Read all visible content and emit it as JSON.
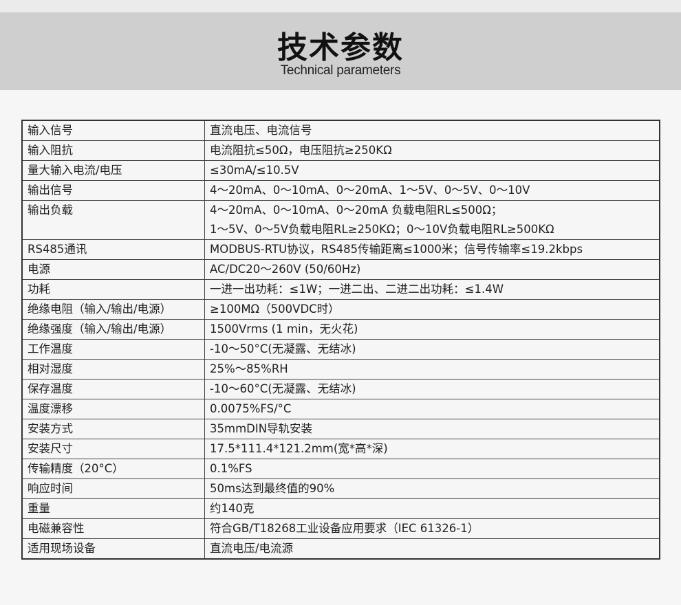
{
  "header": {
    "title": "技术参数",
    "subtitle": "Technical parameters"
  },
  "rows": [
    {
      "label": "输入信号",
      "value": [
        "直流电压、电流信号"
      ]
    },
    {
      "label": "输入阻抗",
      "value": [
        "电流阻抗≤50Ω，电压阻抗≥250KΩ"
      ]
    },
    {
      "label": "量大输入电流/电压",
      "value": [
        "≤30mA/≤10.5V"
      ]
    },
    {
      "label": "输出信号",
      "value": [
        "4～20mA、0～10mA、0～20mA、1～5V、0～5V、0～10V"
      ]
    },
    {
      "label": "输出负载",
      "value": [
        "4～20mA、0～10mA、0～20mA 负载电阻RL≤500Ω；",
        "1～5V、0～5V负载电阻RL≥250KΩ；0～10V负载电阻RL≥500KΩ"
      ]
    },
    {
      "label": "RS485通讯",
      "value": [
        "MODBUS-RTU协议，RS485传输距离≤1000米；信号传输率≤19.2kbps"
      ]
    },
    {
      "label": "电源",
      "value": [
        "AC/DC20～260V (50/60Hz)"
      ]
    },
    {
      "label": "功耗",
      "value": [
        "一进一出功耗：≤1W；一进二出、二进二出功耗：≤1.4W"
      ]
    },
    {
      "label": "绝缘电阻（输入/输出/电源）",
      "value": [
        "≥100MΩ（500VDC时）"
      ]
    },
    {
      "label": "绝缘强度（输入/输出/电源）",
      "value": [
        "1500Vrms (1 min，无火花)"
      ]
    },
    {
      "label": "工作温度",
      "value": [
        "-10～50°C(无凝露、无结冰)"
      ]
    },
    {
      "label": "相对湿度",
      "value": [
        "25%～85%RH"
      ]
    },
    {
      "label": "保存温度",
      "value": [
        "-10～60°C(无凝露、无结冰)"
      ]
    },
    {
      "label": "温度漂移",
      "value": [
        "0.0075%FS/°C"
      ]
    },
    {
      "label": "安装方式",
      "value": [
        "35mmDIN导轨安装"
      ]
    },
    {
      "label": "安装尺寸",
      "value": [
        "17.5*111.4*121.2mm(宽*高*深)"
      ]
    },
    {
      "label": "传输精度（20°C）",
      "value": [
        "0.1%FS"
      ]
    },
    {
      "label": "响应时间",
      "value": [
        "50ms达到最终值的90%"
      ]
    },
    {
      "label": "重量",
      "value": [
        "约140克"
      ]
    },
    {
      "label": "电磁兼容性",
      "value": [
        "符合GB/T18268工业设备应用要求（IEC 61326-1）"
      ]
    },
    {
      "label": "适用现场设备",
      "value": [
        "直流电压/电流源"
      ]
    }
  ]
}
